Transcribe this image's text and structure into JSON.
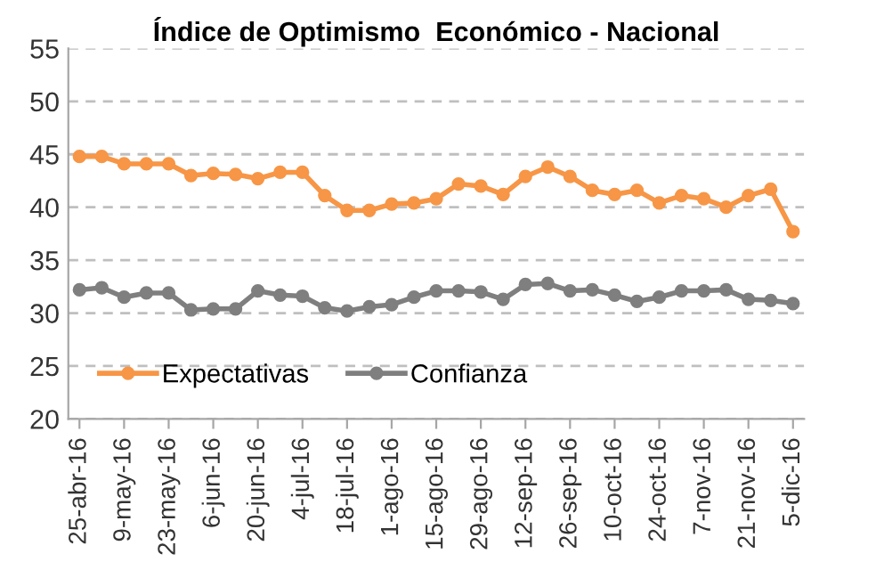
{
  "chart_data": {
    "type": "line",
    "title": "Índice de Optimismo  Económico - Nacional",
    "categories": [
      "25-abr-16",
      null,
      "9-may-16",
      null,
      "23-may-16",
      null,
      "6-jun-16",
      null,
      "20-jun-16",
      null,
      "4-jul-16",
      null,
      "18-jul-16",
      null,
      "1-ago-16",
      null,
      "15-ago-16",
      null,
      "29-ago-16",
      null,
      "12-sep-16",
      null,
      "26-sep-16",
      null,
      "10-oct-16",
      null,
      "24-oct-16",
      null,
      "7-nov-16",
      null,
      "21-nov-16",
      null,
      "5-dic-16"
    ],
    "series": [
      {
        "name": "Expectativas",
        "color": "#f79646",
        "values": [
          44.8,
          44.8,
          44.1,
          44.1,
          44.1,
          43.0,
          43.2,
          43.1,
          42.7,
          43.3,
          43.3,
          41.1,
          39.7,
          39.7,
          40.3,
          40.4,
          40.8,
          42.2,
          42.0,
          41.2,
          42.9,
          43.8,
          42.9,
          41.6,
          41.2,
          41.6,
          40.4,
          41.1,
          40.8,
          40.0,
          41.1,
          41.7,
          37.7
        ]
      },
      {
        "name": "Confianza",
        "color": "#7f7f7f",
        "values": [
          32.2,
          32.4,
          31.5,
          31.9,
          31.9,
          30.3,
          30.4,
          30.4,
          32.1,
          31.7,
          31.6,
          30.5,
          30.2,
          30.6,
          30.8,
          31.5,
          32.1,
          32.1,
          32.0,
          31.3,
          32.7,
          32.8,
          32.1,
          32.2,
          31.7,
          31.1,
          31.5,
          32.1,
          32.1,
          32.2,
          31.3,
          31.2,
          30.9
        ]
      }
    ],
    "ylim": [
      20,
      55
    ],
    "yticks": [
      20,
      25,
      30,
      35,
      40,
      45,
      50,
      55
    ],
    "grid": "y",
    "legend": "bottom left",
    "marker": "circle",
    "line_style": "solid"
  }
}
